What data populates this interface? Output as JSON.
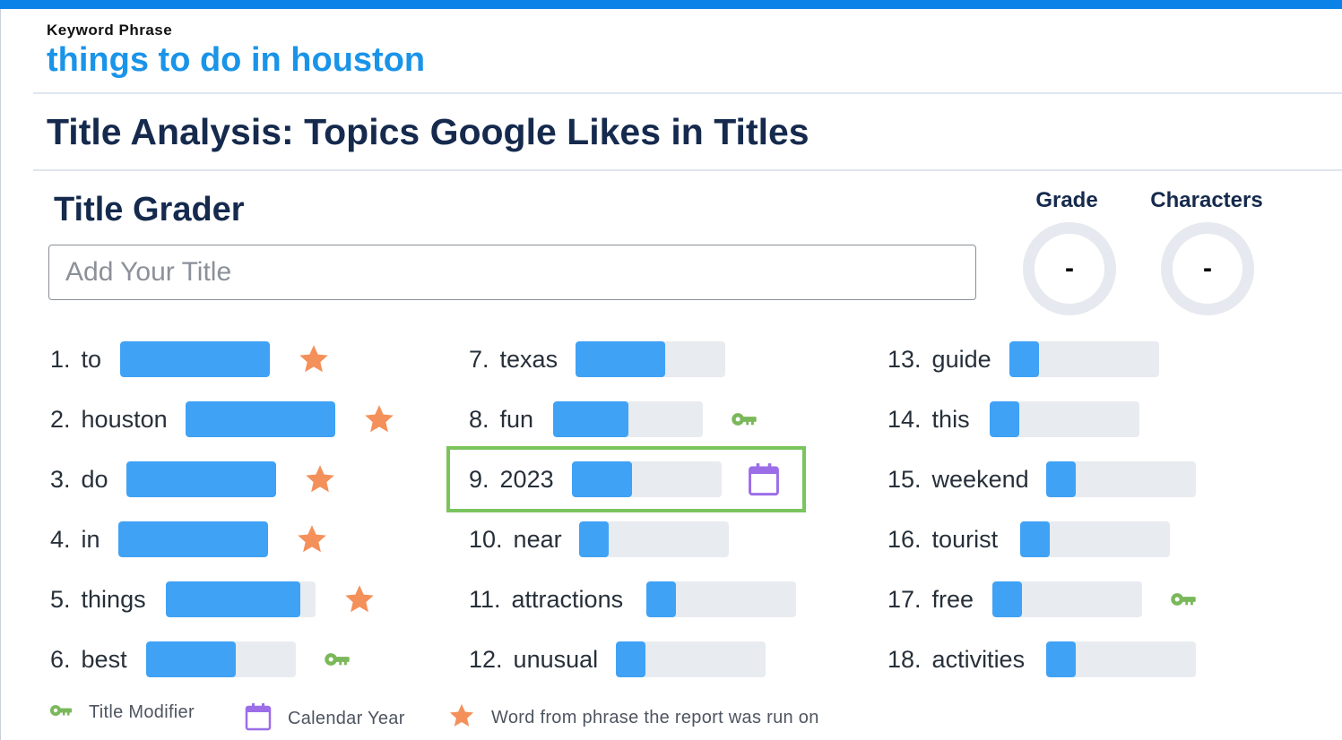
{
  "keyword": {
    "label": "Keyword Phrase",
    "phrase": "things to do in houston"
  },
  "section_title": "Title Analysis: Topics Google Likes in Titles",
  "grader": {
    "title": "Title Grader",
    "placeholder": "Add Your Title",
    "grade_label": "Grade",
    "grade_value": "-",
    "characters_label": "Characters",
    "characters_value": "-"
  },
  "colors": {
    "accent": "#0b82e8",
    "bar_fill": "#3fa2f5",
    "bar_track": "#e8ebf0",
    "star": "#f4905a",
    "modifier": "#7ab85a",
    "calendar": "#9b6ee8",
    "highlight": "#7ac45e"
  },
  "topics": [
    {
      "num": "1.",
      "word": "to",
      "fill": 1.0,
      "marker": "star-icon"
    },
    {
      "num": "2.",
      "word": "houston",
      "fill": 1.0,
      "marker": "star-icon"
    },
    {
      "num": "3.",
      "word": "do",
      "fill": 1.0,
      "marker": "star-icon"
    },
    {
      "num": "4.",
      "word": "in",
      "fill": 1.0,
      "marker": "star-icon"
    },
    {
      "num": "5.",
      "word": "things",
      "fill": 0.9,
      "marker": "star-icon"
    },
    {
      "num": "6.",
      "word": "best",
      "fill": 0.6,
      "marker": "title-modifier-icon"
    },
    {
      "num": "7.",
      "word": "texas",
      "fill": 0.6,
      "marker": ""
    },
    {
      "num": "8.",
      "word": "fun",
      "fill": 0.5,
      "marker": "title-modifier-icon"
    },
    {
      "num": "9.",
      "word": "2023",
      "fill": 0.4,
      "marker": "calendar-icon"
    },
    {
      "num": "10.",
      "word": "near",
      "fill": 0.2,
      "marker": ""
    },
    {
      "num": "11.",
      "word": "attractions",
      "fill": 0.2,
      "marker": ""
    },
    {
      "num": "12.",
      "word": "unusual",
      "fill": 0.2,
      "marker": ""
    },
    {
      "num": "13.",
      "word": "guide",
      "fill": 0.2,
      "marker": ""
    },
    {
      "num": "14.",
      "word": "this",
      "fill": 0.2,
      "marker": ""
    },
    {
      "num": "15.",
      "word": "weekend",
      "fill": 0.2,
      "marker": ""
    },
    {
      "num": "16.",
      "word": "tourist",
      "fill": 0.2,
      "marker": ""
    },
    {
      "num": "17.",
      "word": "free",
      "fill": 0.2,
      "marker": "title-modifier-icon"
    },
    {
      "num": "18.",
      "word": "activities",
      "fill": 0.2,
      "marker": ""
    }
  ],
  "legend": {
    "title_modifier": "Title Modifier",
    "calendar_year": "Calendar Year",
    "phrase_word": "Word from phrase the report was run on"
  }
}
